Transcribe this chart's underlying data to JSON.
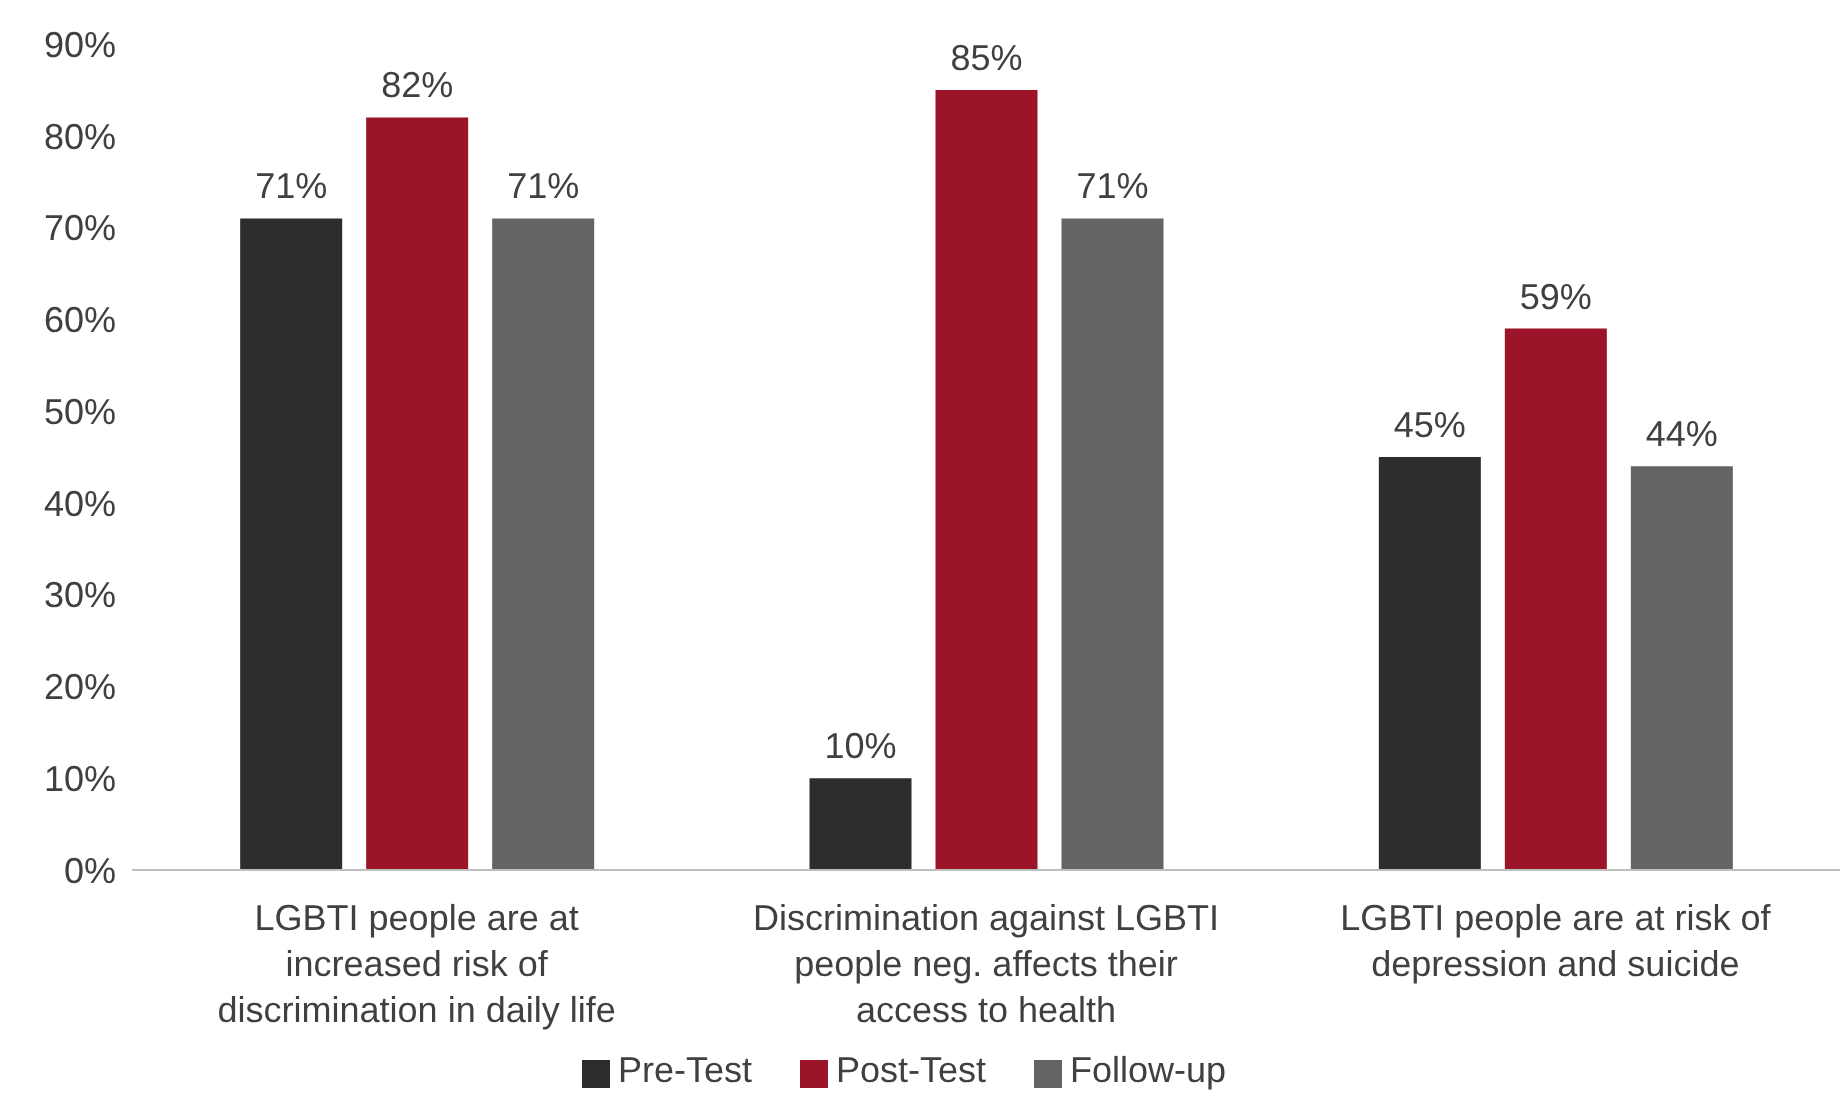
{
  "chart_data": {
    "type": "bar",
    "categories": [
      "LGBTI people are at increased risk of discrimination in daily life",
      "Discrimination against LGBTI people neg. affects their access to health",
      "LGBTI people are at risk of depression and suicide"
    ],
    "series": [
      {
        "name": "Pre-Test",
        "color": "#2d2d2d",
        "values": [
          71,
          10,
          45
        ],
        "value_labels": [
          "71%",
          "10%",
          "45%"
        ]
      },
      {
        "name": "Post-Test",
        "color": "#9b1427",
        "values": [
          82,
          85,
          59
        ],
        "value_labels": [
          "82%",
          "85%",
          "59%"
        ]
      },
      {
        "name": "Follow-up",
        "color": "#646464",
        "values": [
          71,
          71,
          44
        ],
        "value_labels": [
          "71%",
          "71%",
          "44%"
        ]
      }
    ],
    "ylim": [
      0,
      90
    ],
    "yticks": [
      {
        "value": 0,
        "label": "0%"
      },
      {
        "value": 10,
        "label": "10%"
      },
      {
        "value": 20,
        "label": "20%"
      },
      {
        "value": 30,
        "label": "30%"
      },
      {
        "value": 40,
        "label": "40%"
      },
      {
        "value": 50,
        "label": "50%"
      },
      {
        "value": 60,
        "label": "60%"
      },
      {
        "value": 70,
        "label": "70%"
      },
      {
        "value": 80,
        "label": "80%"
      },
      {
        "value": 90,
        "label": "90%"
      }
    ],
    "grid": false,
    "legend": "bottom"
  }
}
